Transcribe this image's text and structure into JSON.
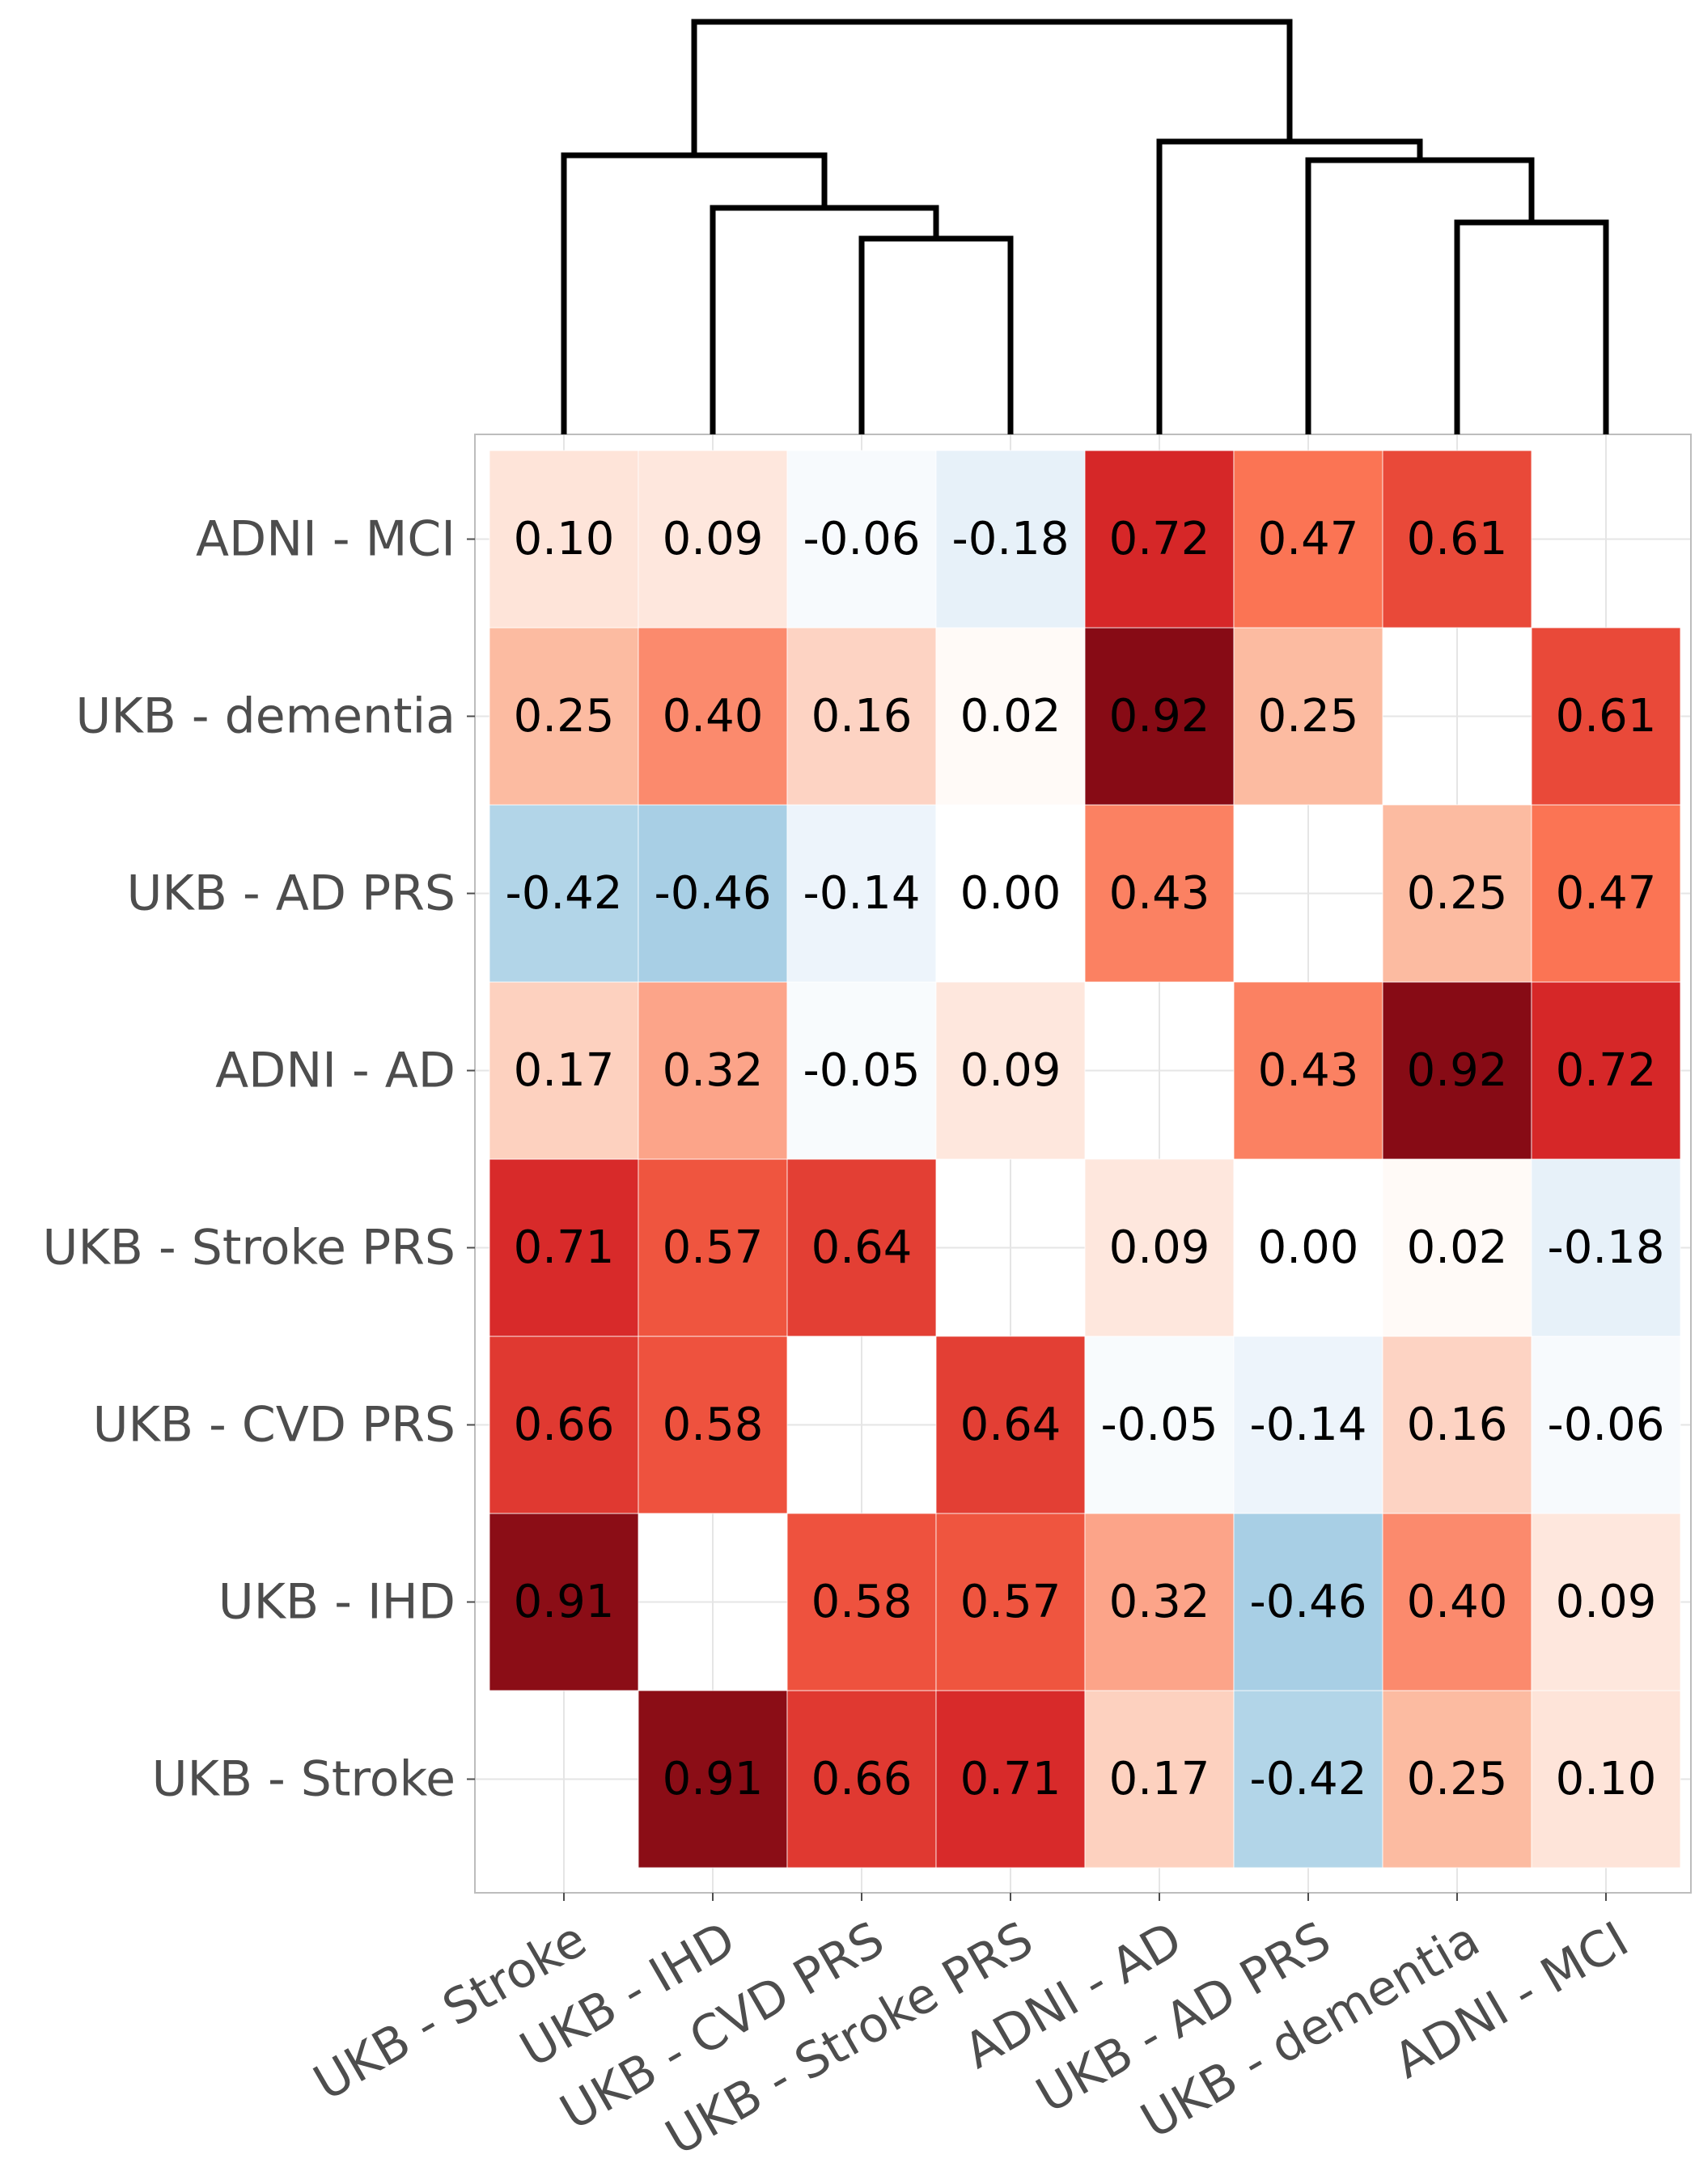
{
  "chart_data": {
    "type": "heatmap",
    "title": "",
    "xlabel": "",
    "ylabel": "",
    "x_categories": [
      "UKB - Stroke",
      "UKB - IHD",
      "UKB - CVD PRS",
      "UKB - Stroke PRS",
      "ADNI - AD",
      "UKB - AD PRS",
      "UKB - dementia",
      "ADNI - MCI"
    ],
    "y_categories_bottom_to_top": [
      "UKB - Stroke",
      "UKB - IHD",
      "UKB - CVD PRS",
      "UKB - Stroke PRS",
      "ADNI - AD",
      "UKB - AD PRS",
      "UKB - dementia",
      "ADNI - MCI"
    ],
    "matrix": [
      [
        null,
        0.91,
        0.66,
        0.71,
        0.17,
        -0.42,
        0.25,
        0.1
      ],
      [
        0.91,
        null,
        0.58,
        0.57,
        0.32,
        -0.46,
        0.4,
        0.09
      ],
      [
        0.66,
        0.58,
        null,
        0.64,
        -0.05,
        -0.14,
        0.16,
        -0.06
      ],
      [
        0.71,
        0.57,
        0.64,
        null,
        0.09,
        0.0,
        0.02,
        -0.18
      ],
      [
        0.17,
        0.32,
        -0.05,
        0.09,
        null,
        0.43,
        0.92,
        0.72
      ],
      [
        -0.42,
        -0.46,
        -0.14,
        0.0,
        0.43,
        null,
        0.25,
        0.47
      ],
      [
        0.25,
        0.4,
        0.16,
        0.02,
        0.92,
        0.25,
        null,
        0.61
      ],
      [
        0.1,
        0.09,
        -0.06,
        -0.18,
        0.72,
        0.47,
        0.61,
        null
      ]
    ],
    "value_format": "2 decimals",
    "color_scale": {
      "negative": "#2166ac",
      "neutral": "#ffffff",
      "positive": "#67000d"
    },
    "dendrogram": "top",
    "grid": true,
    "legend": "none"
  }
}
